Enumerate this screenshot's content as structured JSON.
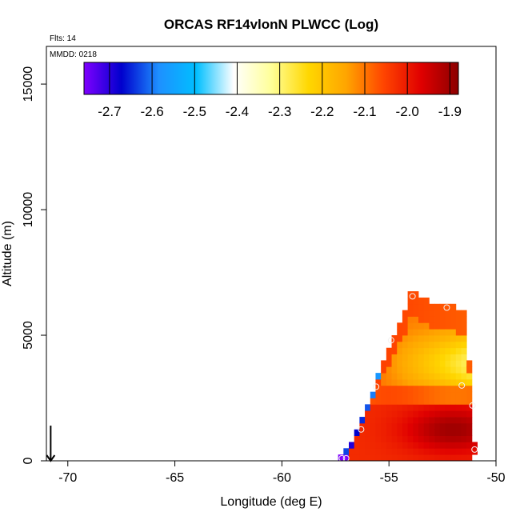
{
  "chart_data": {
    "type": "heatmap",
    "title": "ORCAS RF14vlonN PLWCC (Log)",
    "annotations": {
      "flights": "Flts: 14",
      "date": "MMDD: 0218"
    },
    "xlabel": "Longitude (deg E)",
    "ylabel": "Altitude (m)",
    "xlim": [
      -71,
      -50
    ],
    "ylim": [
      0,
      16500
    ],
    "x_ticks": [
      -70,
      -65,
      -60,
      -55,
      -50
    ],
    "x_tick_labels": [
      "-70",
      "-65",
      "-60",
      "-55",
      "-50"
    ],
    "y_ticks": [
      0,
      5000,
      10000,
      15000
    ],
    "y_tick_labels": [
      "0",
      "5000",
      "10000",
      "15000"
    ],
    "colorbar": {
      "range": [
        -2.76,
        -1.88
      ],
      "ticks": [
        -2.7,
        -2.6,
        -2.5,
        -2.4,
        -2.3,
        -2.2,
        -2.1,
        -2.0,
        -1.9
      ],
      "tick_labels": [
        "-2.7",
        "-2.6",
        "-2.5",
        "-2.4",
        "-2.3",
        "-2.2",
        "-2.1",
        "-2.0",
        "-1.9"
      ],
      "colors": [
        "#7f00ff",
        "#0000cd",
        "#1e90ff",
        "#00bfff",
        "#ffffff",
        "#ffff99",
        "#ffd700",
        "#ffa500",
        "#ff4500",
        "#e00000",
        "#8b0000"
      ]
    },
    "cell_size": {
      "dlon": 0.25,
      "dalt": 250
    },
    "grid": {
      "lons": [
        -57.25,
        -57.0,
        -56.75,
        -56.5,
        -56.25,
        -56.0,
        -55.75,
        -55.5,
        -55.25,
        -55.0,
        -54.75,
        -54.5,
        -54.25,
        -54.0,
        -53.75,
        -53.5,
        -53.25,
        -53.0,
        -52.75,
        -52.5,
        -52.25,
        -52.0,
        -51.75,
        -51.5,
        -51.25,
        -51.0
      ],
      "tops": [
        250,
        500,
        750,
        1250,
        1750,
        2250,
        2750,
        3500,
        4000,
        4500,
        5000,
        5500,
        6000,
        6750,
        6750,
        6500,
        6500,
        6250,
        6250,
        6250,
        6250,
        6250,
        6000,
        6000,
        4000,
        750
      ],
      "bottoms": [
        0,
        0,
        0,
        0,
        0,
        0,
        0,
        0,
        0,
        0,
        0,
        0,
        0,
        0,
        0,
        0,
        0,
        0,
        0,
        0,
        0,
        0,
        0,
        0,
        0,
        250
      ]
    },
    "flight_markers": [
      {
        "lon": -57.2,
        "alt": 100
      },
      {
        "lon": -57.0,
        "alt": 100
      },
      {
        "lon": -56.3,
        "alt": 1250
      },
      {
        "lon": -55.6,
        "alt": 2950
      },
      {
        "lon": -54.9,
        "alt": 4800
      },
      {
        "lon": -53.9,
        "alt": 6550
      },
      {
        "lon": -52.3,
        "alt": 6100
      },
      {
        "lon": -51.6,
        "alt": 3000
      },
      {
        "lon": -51.1,
        "alt": 2200
      },
      {
        "lon": -51.0,
        "alt": 450
      }
    ],
    "direction_arrow": {
      "lon": -70.8,
      "from_alt": 700,
      "to_alt": 0,
      "direction": "down"
    }
  }
}
